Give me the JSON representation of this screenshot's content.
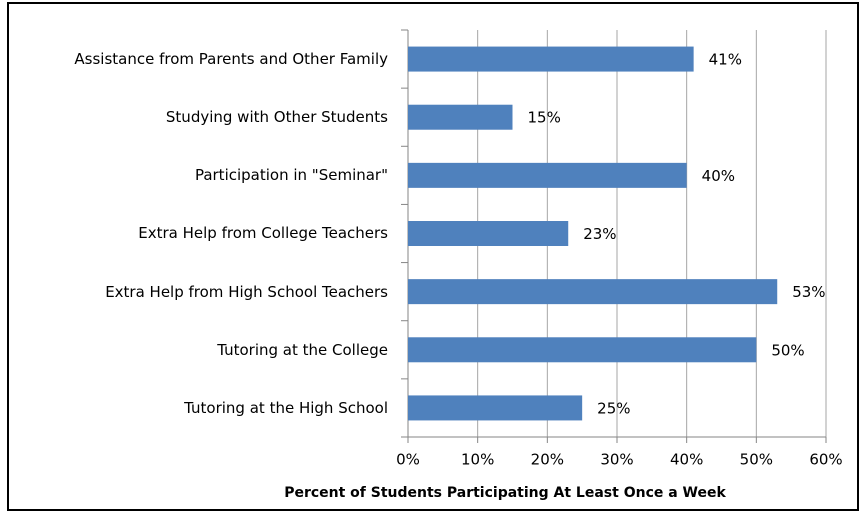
{
  "chart_data": {
    "type": "bar",
    "orientation": "horizontal",
    "x_label": "Percent of Students Participating  At Least Once a Week",
    "categories": [
      "Assistance from Parents and Other Family",
      "Studying with Other Students",
      "Participation in \"Seminar\"",
      "Extra Help from College Teachers",
      "Extra Help from High School Teachers",
      "Tutoring at the College",
      "Tutoring at the High School"
    ],
    "values": [
      41,
      15,
      40,
      23,
      53,
      50,
      25
    ],
    "value_labels": [
      "41%",
      "15%",
      "40%",
      "23%",
      "53%",
      "50%",
      "25%"
    ],
    "color": "#4f81bd",
    "xlim": [
      0,
      60
    ],
    "xticks": [
      {
        "value": 0,
        "label": "0%"
      },
      {
        "value": 10,
        "label": "10%"
      },
      {
        "value": 20,
        "label": "20%"
      },
      {
        "value": 30,
        "label": "30%"
      },
      {
        "value": 40,
        "label": "40%"
      },
      {
        "value": 50,
        "label": "50%"
      },
      {
        "value": 60,
        "label": "60%"
      }
    ],
    "grid": true
  }
}
